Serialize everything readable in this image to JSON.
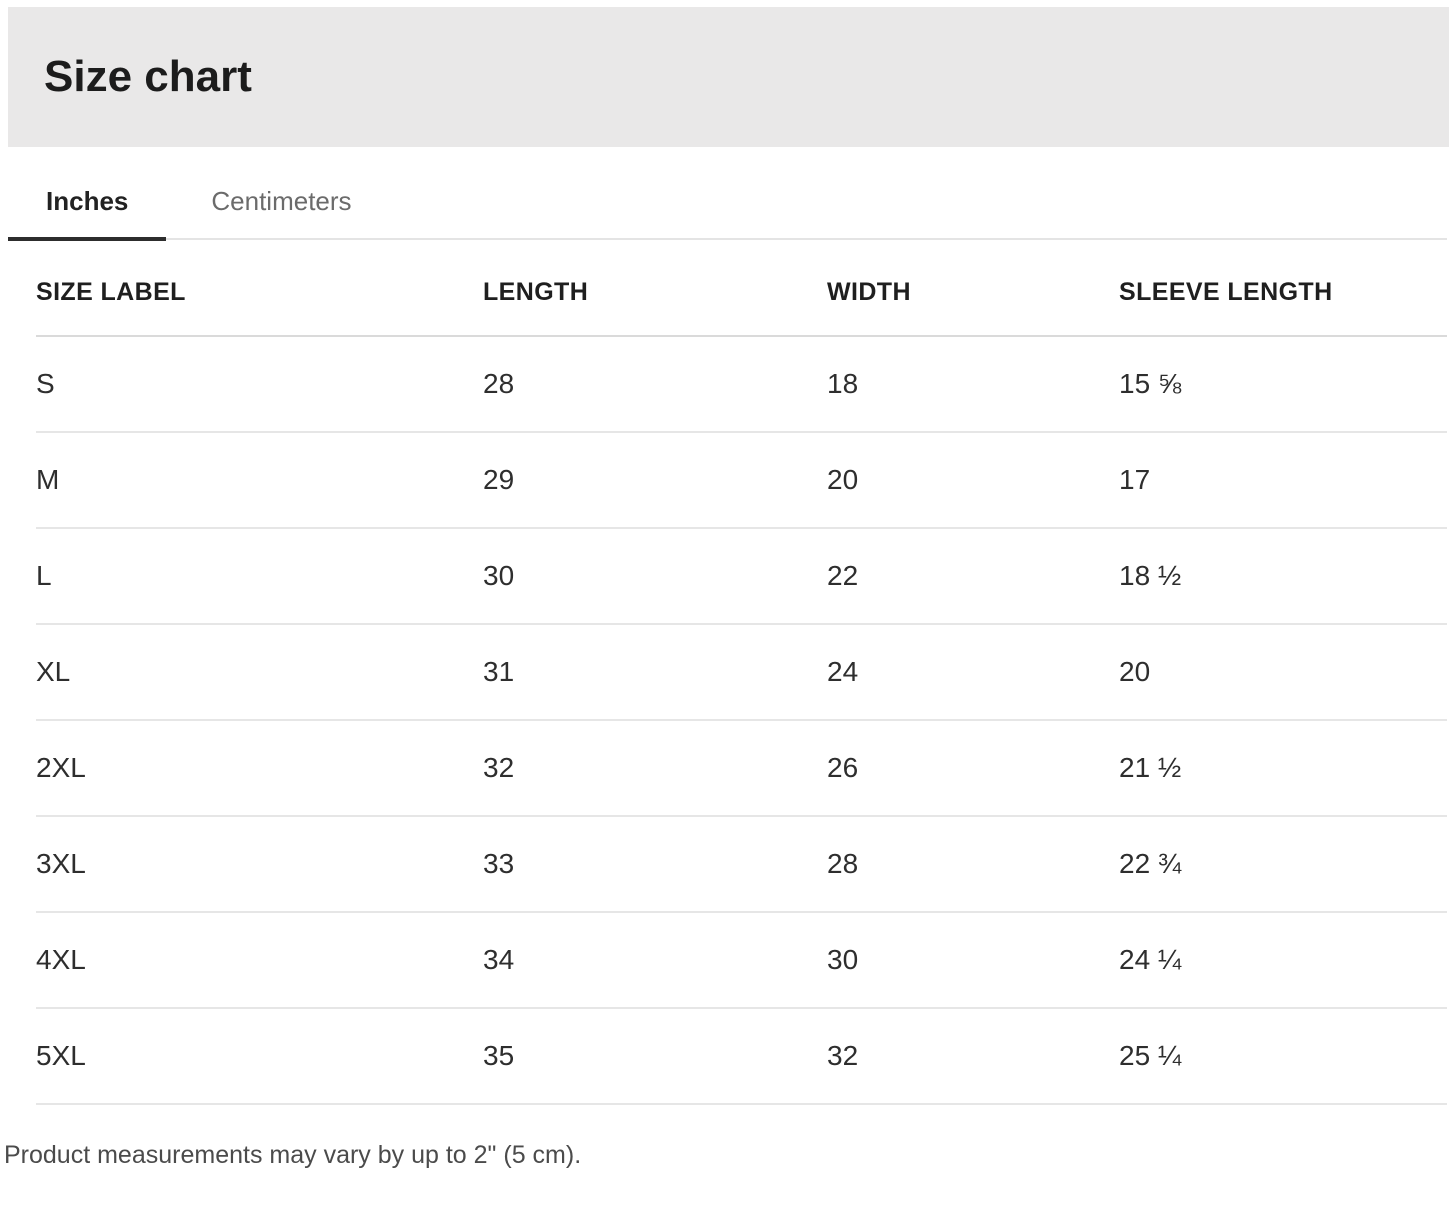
{
  "header": {
    "title": "Size chart"
  },
  "tabs": [
    {
      "label": "Inches",
      "active": true
    },
    {
      "label": "Centimeters",
      "active": false
    }
  ],
  "table": {
    "columns": [
      "SIZE LABEL",
      "LENGTH",
      "WIDTH",
      "SLEEVE LENGTH"
    ],
    "rows": [
      {
        "size": "S",
        "length": "28",
        "width": "18",
        "sleeve": "15 ⅝"
      },
      {
        "size": "M",
        "length": "29",
        "width": "20",
        "sleeve": "17"
      },
      {
        "size": "L",
        "length": "30",
        "width": "22",
        "sleeve": "18 ½"
      },
      {
        "size": "XL",
        "length": "31",
        "width": "24",
        "sleeve": "20"
      },
      {
        "size": "2XL",
        "length": "32",
        "width": "26",
        "sleeve": "21 ½"
      },
      {
        "size": "3XL",
        "length": "33",
        "width": "28",
        "sleeve": "22 ¾"
      },
      {
        "size": "4XL",
        "length": "34",
        "width": "30",
        "sleeve": "24 ¼"
      },
      {
        "size": "5XL",
        "length": "35",
        "width": "32",
        "sleeve": "25 ¼"
      }
    ]
  },
  "footer": {
    "note": "Product measurements may vary by up to 2\" (5 cm)."
  },
  "colors": {
    "header_band": "#e9e8e8",
    "active_tab_underline": "#2d2d2d",
    "tab_bar_border": "#e4e4e4",
    "header_separator": "#dadada",
    "row_separator": "#e6e6e6",
    "text_primary": "#1f1f1f",
    "text_secondary": "#6b6b6b",
    "footer_text": "#4b4b4b"
  }
}
